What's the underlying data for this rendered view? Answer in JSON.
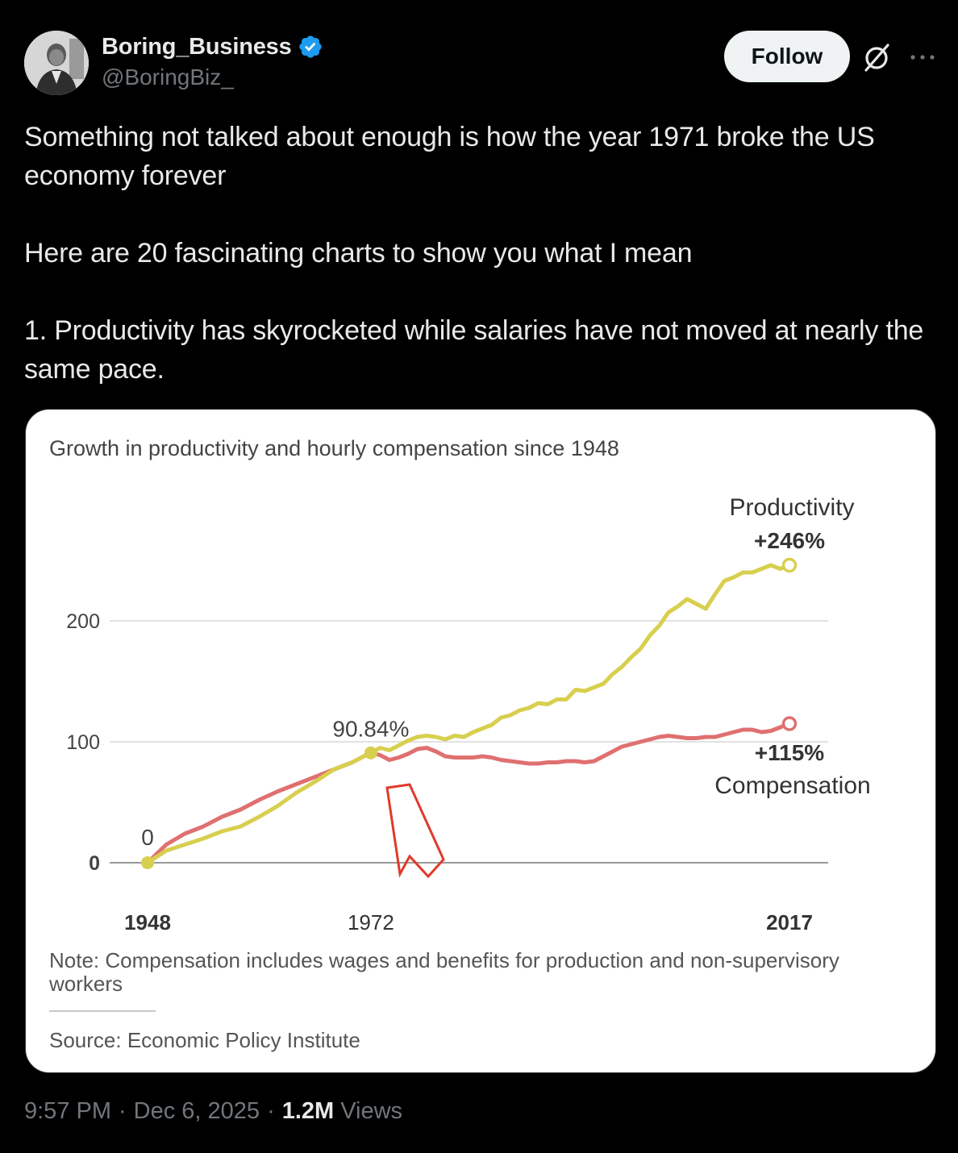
{
  "author": {
    "display_name": "Boring_Business",
    "handle": "@BoringBiz_",
    "verified": true,
    "verified_color": "#1d9bf0"
  },
  "actions": {
    "follow_label": "Follow"
  },
  "tweet": {
    "paragraphs": [
      "Something not talked about enough is how the year 1971 broke the US economy forever",
      "Here are 20 fascinating charts to show you what I mean",
      "1. Productivity has skyrocketed while salaries have not moved at nearly the same pace."
    ]
  },
  "meta": {
    "time": "9:57 PM",
    "date": "Dec 6, 2025",
    "views_count": "1.2M",
    "views_label": "Views",
    "separator": "·"
  },
  "chart_data": {
    "type": "line",
    "title": "Growth in productivity and hourly compensation since 1948",
    "ylim": [
      0,
      246
    ],
    "y_ticks": [
      {
        "value": 0,
        "label": "0"
      },
      {
        "value": 100,
        "label": "100"
      },
      {
        "value": 200,
        "label": "200"
      }
    ],
    "x_ticks": [
      {
        "value": 1948,
        "label": "1948"
      },
      {
        "value": 1972,
        "label": "1972"
      },
      {
        "value": 2017,
        "label": "2017"
      }
    ],
    "xlim": [
      1948,
      2017
    ],
    "series": [
      {
        "name": "Productivity",
        "color": "#d8cf4f",
        "end_label": "+246%",
        "x": [
          1948,
          1950,
          1952,
          1954,
          1956,
          1958,
          1960,
          1962,
          1964,
          1966,
          1968,
          1970,
          1971,
          1972,
          1973,
          1974,
          1975,
          1976,
          1977,
          1978,
          1979,
          1980,
          1981,
          1982,
          1983,
          1984,
          1985,
          1986,
          1987,
          1988,
          1989,
          1990,
          1991,
          1992,
          1993,
          1994,
          1995,
          1996,
          1997,
          1998,
          1999,
          2000,
          2001,
          2002,
          2003,
          2004,
          2005,
          2006,
          2007,
          2008,
          2009,
          2010,
          2011,
          2012,
          2013,
          2014,
          2015,
          2016,
          2017
        ],
        "values": [
          0,
          10,
          15,
          20,
          26,
          30,
          38,
          47,
          58,
          67,
          77,
          83,
          87,
          90.84,
          95,
          93,
          97,
          101,
          104,
          105,
          104,
          102,
          105,
          104,
          108,
          111,
          114,
          120,
          122,
          126,
          128,
          132,
          131,
          135,
          135,
          143,
          142,
          145,
          148,
          156,
          162,
          170,
          177,
          188,
          196,
          207,
          212,
          218,
          214,
          210,
          222,
          233,
          236,
          240,
          240,
          243,
          246,
          243,
          246
        ]
      },
      {
        "name": "Compensation",
        "color": "#e07070",
        "end_label": "+115%",
        "x": [
          1948,
          1950,
          1952,
          1954,
          1956,
          1958,
          1960,
          1962,
          1964,
          1966,
          1968,
          1970,
          1971,
          1972,
          1973,
          1974,
          1975,
          1976,
          1977,
          1978,
          1979,
          1980,
          1981,
          1982,
          1983,
          1984,
          1985,
          1986,
          1987,
          1988,
          1989,
          1990,
          1991,
          1992,
          1993,
          1994,
          1995,
          1996,
          1997,
          1998,
          1999,
          2000,
          2001,
          2002,
          2003,
          2004,
          2005,
          2006,
          2007,
          2008,
          2009,
          2010,
          2011,
          2012,
          2013,
          2014,
          2015,
          2016,
          2017
        ],
        "values": [
          0,
          15,
          24,
          30,
          38,
          44,
          52,
          59,
          65,
          71,
          77,
          83,
          87,
          91,
          89,
          85,
          87,
          90,
          94,
          95,
          92,
          88,
          87,
          87,
          87,
          88,
          87,
          85,
          84,
          83,
          82,
          82,
          83,
          83,
          84,
          84,
          83,
          84,
          88,
          92,
          96,
          98,
          100,
          102,
          104,
          105,
          104,
          103,
          103,
          104,
          104,
          106,
          108,
          110,
          110,
          108,
          109,
          112,
          115
        ]
      }
    ],
    "annotations": [
      {
        "text": "90.84%",
        "year": 1972,
        "value": 90.84
      },
      {
        "text": "0",
        "year": 1948,
        "value": 0
      }
    ],
    "legend": [
      "Productivity",
      "Compensation"
    ],
    "note": "Note: Compensation includes wages and benefits for production and non-supervisory workers",
    "note_line1": "Note: Compensation includes wages and benefits for production and non-supervisory",
    "note_line2": "workers",
    "source": "Source: Economic Policy Institute"
  }
}
